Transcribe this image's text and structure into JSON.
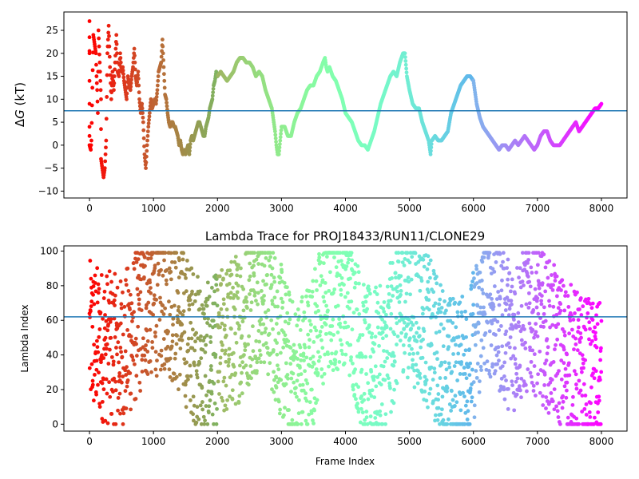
{
  "chart_data": [
    {
      "type": "scatter",
      "title": "",
      "xlabel": "",
      "ylabel": "ΔG (kT)",
      "ylabel_parts": {
        "delta": "Δ",
        "var": "G",
        "unit": " (kT)"
      },
      "xlim": [
        -400,
        8400
      ],
      "ylim": [
        -11.5,
        29
      ],
      "xticks": [
        0,
        1000,
        2000,
        3000,
        4000,
        5000,
        6000,
        7000,
        8000
      ],
      "yticks": [
        -10,
        -5,
        0,
        5,
        10,
        15,
        20,
        25
      ],
      "hline": 7.5,
      "hline_color": "#1f77b4",
      "colormap": "rainbow (red at frame 0 → violet at frame 8000)",
      "x_range": [
        0,
        8000
      ],
      "series_points": [
        [
          0,
          20
        ],
        [
          0,
          27
        ],
        [
          0,
          14
        ],
        [
          0,
          4
        ],
        [
          0,
          0
        ],
        [
          20,
          -1
        ],
        [
          30,
          1
        ],
        [
          60,
          24
        ],
        [
          80,
          22
        ],
        [
          100,
          20
        ],
        [
          110,
          15
        ],
        [
          120,
          12
        ],
        [
          130,
          7
        ],
        [
          140,
          25
        ],
        [
          160,
          18
        ],
        [
          180,
          10
        ],
        [
          180,
          -3
        ],
        [
          200,
          -5
        ],
        [
          210,
          -6
        ],
        [
          220,
          -7
        ],
        [
          240,
          -5
        ],
        [
          260,
          1
        ],
        [
          280,
          20
        ],
        [
          300,
          26
        ],
        [
          320,
          17
        ],
        [
          340,
          10
        ],
        [
          360,
          16
        ],
        [
          380,
          12
        ],
        [
          400,
          18
        ],
        [
          420,
          24
        ],
        [
          440,
          16
        ],
        [
          460,
          15
        ],
        [
          480,
          20
        ],
        [
          500,
          16
        ],
        [
          520,
          17
        ],
        [
          540,
          14
        ],
        [
          560,
          12
        ],
        [
          580,
          10
        ],
        [
          600,
          15
        ],
        [
          620,
          13
        ],
        [
          640,
          12
        ],
        [
          660,
          15
        ],
        [
          680,
          17
        ],
        [
          700,
          21
        ],
        [
          720,
          15
        ],
        [
          740,
          13
        ],
        [
          760,
          16
        ],
        [
          780,
          10
        ],
        [
          800,
          7
        ],
        [
          820,
          9
        ],
        [
          840,
          5
        ],
        [
          860,
          -2
        ],
        [
          880,
          -5
        ],
        [
          900,
          0
        ],
        [
          920,
          4
        ],
        [
          940,
          7
        ],
        [
          960,
          10
        ],
        [
          980,
          8
        ],
        [
          1000,
          9
        ],
        [
          1020,
          10
        ],
        [
          1040,
          9
        ],
        [
          1060,
          12
        ],
        [
          1080,
          16
        ],
        [
          1100,
          17
        ],
        [
          1120,
          18
        ],
        [
          1140,
          23
        ],
        [
          1160,
          17
        ],
        [
          1180,
          11
        ],
        [
          1200,
          10
        ],
        [
          1220,
          7
        ],
        [
          1240,
          5
        ],
        [
          1260,
          4
        ],
        [
          1280,
          5
        ],
        [
          1300,
          5
        ],
        [
          1320,
          4
        ],
        [
          1340,
          4
        ],
        [
          1360,
          3
        ],
        [
          1380,
          2
        ],
        [
          1400,
          0
        ],
        [
          1420,
          1
        ],
        [
          1440,
          -1
        ],
        [
          1460,
          -2
        ],
        [
          1480,
          -1
        ],
        [
          1500,
          -2
        ],
        [
          1520,
          -1
        ],
        [
          1540,
          0
        ],
        [
          1560,
          -2
        ],
        [
          1580,
          1
        ],
        [
          1600,
          2
        ],
        [
          1620,
          1
        ],
        [
          1640,
          2
        ],
        [
          1660,
          3
        ],
        [
          1680,
          4
        ],
        [
          1700,
          5
        ],
        [
          1720,
          5
        ],
        [
          1740,
          4
        ],
        [
          1760,
          3
        ],
        [
          1780,
          2
        ],
        [
          1800,
          2
        ],
        [
          1820,
          4
        ],
        [
          1840,
          5
        ],
        [
          1860,
          6
        ],
        [
          1880,
          8
        ],
        [
          1900,
          9
        ],
        [
          1920,
          10
        ],
        [
          1940,
          13
        ],
        [
          1960,
          14
        ],
        [
          1980,
          16
        ],
        [
          2000,
          15
        ],
        [
          2050,
          16
        ],
        [
          2100,
          15
        ],
        [
          2150,
          14
        ],
        [
          2200,
          15
        ],
        [
          2250,
          16
        ],
        [
          2300,
          18
        ],
        [
          2350,
          19
        ],
        [
          2400,
          19
        ],
        [
          2450,
          18
        ],
        [
          2500,
          18
        ],
        [
          2550,
          17
        ],
        [
          2600,
          15
        ],
        [
          2650,
          16
        ],
        [
          2700,
          15
        ],
        [
          2750,
          12
        ],
        [
          2800,
          10
        ],
        [
          2850,
          8
        ],
        [
          2880,
          5
        ],
        [
          2900,
          3
        ],
        [
          2920,
          0
        ],
        [
          2940,
          -2
        ],
        [
          2960,
          -2
        ],
        [
          2980,
          1
        ],
        [
          3000,
          4
        ],
        [
          3050,
          4
        ],
        [
          3100,
          2
        ],
        [
          3150,
          2
        ],
        [
          3200,
          5
        ],
        [
          3250,
          7
        ],
        [
          3300,
          8
        ],
        [
          3350,
          10
        ],
        [
          3400,
          12
        ],
        [
          3450,
          13
        ],
        [
          3500,
          13
        ],
        [
          3550,
          15
        ],
        [
          3600,
          16
        ],
        [
          3650,
          18
        ],
        [
          3680,
          19
        ],
        [
          3700,
          17
        ],
        [
          3720,
          16
        ],
        [
          3750,
          17
        ],
        [
          3800,
          15
        ],
        [
          3850,
          14
        ],
        [
          3900,
          12
        ],
        [
          3950,
          10
        ],
        [
          4000,
          7
        ],
        [
          4050,
          6
        ],
        [
          4100,
          5
        ],
        [
          4150,
          3
        ],
        [
          4200,
          1
        ],
        [
          4250,
          0
        ],
        [
          4300,
          0
        ],
        [
          4350,
          -1
        ],
        [
          4400,
          1
        ],
        [
          4450,
          3
        ],
        [
          4500,
          6
        ],
        [
          4550,
          9
        ],
        [
          4600,
          11
        ],
        [
          4650,
          13
        ],
        [
          4700,
          15
        ],
        [
          4750,
          16
        ],
        [
          4800,
          15
        ],
        [
          4850,
          18
        ],
        [
          4900,
          20
        ],
        [
          4930,
          20
        ],
        [
          4960,
          15
        ],
        [
          5000,
          12
        ],
        [
          5050,
          9
        ],
        [
          5100,
          8
        ],
        [
          5150,
          8
        ],
        [
          5200,
          5
        ],
        [
          5250,
          3
        ],
        [
          5300,
          1
        ],
        [
          5330,
          -2
        ],
        [
          5350,
          1
        ],
        [
          5400,
          2
        ],
        [
          5450,
          1
        ],
        [
          5500,
          1
        ],
        [
          5550,
          2
        ],
        [
          5600,
          3
        ],
        [
          5650,
          7
        ],
        [
          5700,
          9
        ],
        [
          5750,
          11
        ],
        [
          5800,
          13
        ],
        [
          5850,
          14
        ],
        [
          5900,
          15
        ],
        [
          5950,
          15
        ],
        [
          6000,
          14
        ],
        [
          6050,
          9
        ],
        [
          6100,
          6
        ],
        [
          6150,
          4
        ],
        [
          6200,
          3
        ],
        [
          6250,
          2
        ],
        [
          6300,
          1
        ],
        [
          6350,
          0
        ],
        [
          6400,
          -1
        ],
        [
          6450,
          0
        ],
        [
          6500,
          0
        ],
        [
          6550,
          -1
        ],
        [
          6600,
          0
        ],
        [
          6650,
          1
        ],
        [
          6700,
          0
        ],
        [
          6750,
          1
        ],
        [
          6800,
          2
        ],
        [
          6850,
          1
        ],
        [
          6900,
          0
        ],
        [
          6950,
          -1
        ],
        [
          7000,
          0
        ],
        [
          7050,
          2
        ],
        [
          7100,
          3
        ],
        [
          7150,
          3
        ],
        [
          7200,
          1
        ],
        [
          7250,
          0
        ],
        [
          7300,
          0
        ],
        [
          7350,
          0
        ],
        [
          7400,
          1
        ],
        [
          7450,
          2
        ],
        [
          7500,
          3
        ],
        [
          7550,
          4
        ],
        [
          7600,
          5
        ],
        [
          7650,
          3
        ],
        [
          7700,
          4
        ],
        [
          7750,
          5
        ],
        [
          7800,
          6
        ],
        [
          7850,
          7
        ],
        [
          7900,
          8
        ],
        [
          7950,
          8
        ],
        [
          8000,
          9
        ]
      ]
    },
    {
      "type": "scatter",
      "title": "Lambda Trace for PROJ18433/RUN11/CLONE29",
      "xlabel": "Frame Index",
      "ylabel": "Lambda Index",
      "xlim": [
        -400,
        8400
      ],
      "ylim": [
        -4,
        103
      ],
      "xticks": [
        0,
        1000,
        2000,
        3000,
        4000,
        5000,
        6000,
        7000,
        8000
      ],
      "yticks": [
        0,
        20,
        40,
        60,
        80,
        100
      ],
      "hline": 62,
      "hline_color": "#1f77b4",
      "colormap": "rainbow (red at frame 0 → violet at frame 8000)",
      "x_range": [
        0,
        8000
      ],
      "y_range": [
        0,
        99
      ],
      "band_centers": [
        [
          0,
          50
        ],
        [
          500,
          40
        ],
        [
          900,
          70
        ],
        [
          1200,
          75
        ],
        [
          1800,
          35
        ],
        [
          2300,
          55
        ],
        [
          2700,
          80
        ],
        [
          3200,
          25
        ],
        [
          3500,
          45
        ],
        [
          3700,
          70
        ],
        [
          4000,
          80
        ],
        [
          4300,
          35
        ],
        [
          4600,
          35
        ],
        [
          4900,
          75
        ],
        [
          5200,
          60
        ],
        [
          5600,
          30
        ],
        [
          5900,
          30
        ],
        [
          6200,
          75
        ],
        [
          6600,
          50
        ],
        [
          6900,
          65
        ],
        [
          7300,
          45
        ],
        [
          7700,
          30
        ],
        [
          8000,
          25
        ]
      ],
      "sample_count": 2400
    }
  ]
}
